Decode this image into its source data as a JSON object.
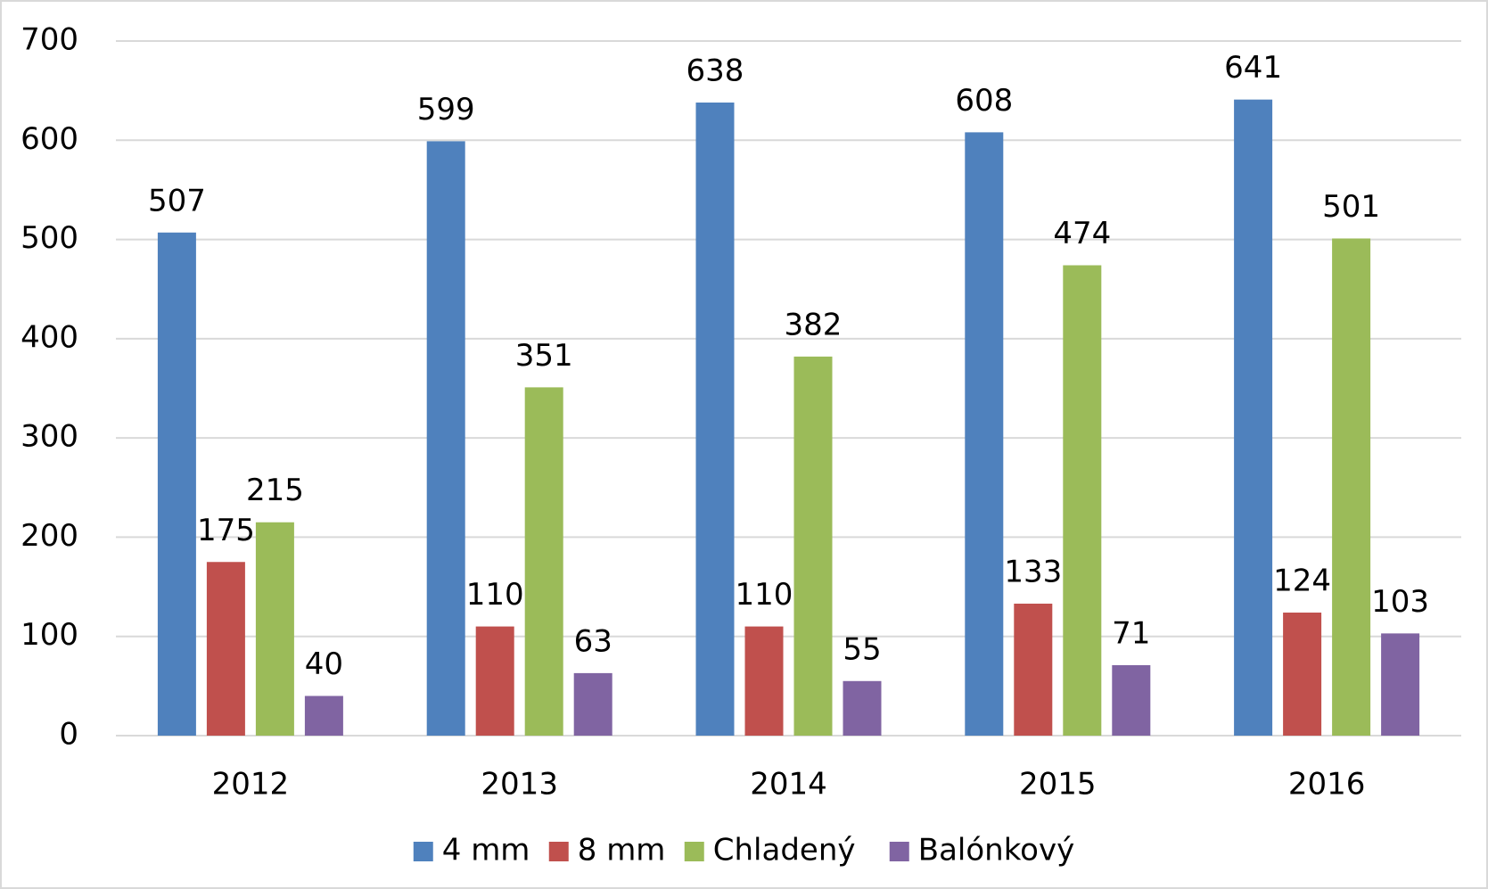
{
  "chart_data": {
    "type": "bar",
    "categories": [
      "2012",
      "2013",
      "2014",
      "2015",
      "2016"
    ],
    "series": [
      {
        "name": "4 mm",
        "color": "#4f81bd",
        "values": [
          507,
          599,
          638,
          608,
          641
        ]
      },
      {
        "name": "8 mm",
        "color": "#c0504d",
        "values": [
          175,
          110,
          110,
          133,
          124
        ]
      },
      {
        "name": "Chladený",
        "color": "#9bbb59",
        "values": [
          215,
          351,
          382,
          474,
          501
        ]
      },
      {
        "name": "Balónkový",
        "color": "#8064a2",
        "values": [
          40,
          63,
          55,
          71,
          103
        ]
      }
    ],
    "ylim": [
      0,
      700
    ],
    "yticks": [
      0,
      100,
      200,
      300,
      400,
      500,
      600,
      700
    ],
    "grid": true,
    "legend": "bottom"
  }
}
